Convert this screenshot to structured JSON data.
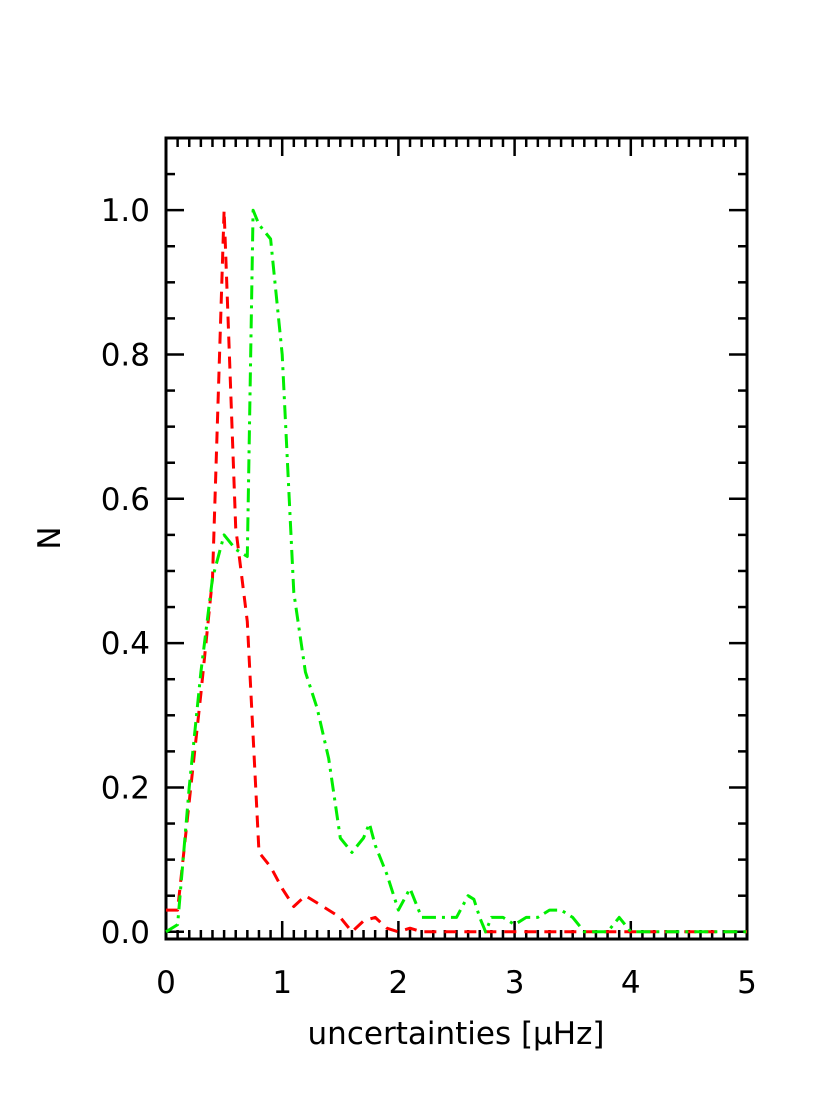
{
  "chart_data": {
    "type": "line",
    "xlabel": "uncertainties [μHz]",
    "ylabel": "N",
    "xlim": [
      0,
      5
    ],
    "ylim": [
      -0.01,
      1.1
    ],
    "xticks": [
      "0",
      "1",
      "2",
      "3",
      "4",
      "5"
    ],
    "yticks": [
      "0.0",
      "0.2",
      "0.4",
      "0.6",
      "0.8",
      "1.0"
    ],
    "series": [
      {
        "color": "#ff0000",
        "style": "dashed",
        "x": [
          0,
          0.1,
          0.2,
          0.3,
          0.4,
          0.5,
          0.6,
          0.7,
          0.8,
          0.9,
          1.0,
          1.1,
          1.2,
          1.3,
          1.4,
          1.5,
          1.6,
          1.7,
          1.8,
          1.9,
          2.0,
          2.1,
          2.2,
          2.3,
          2.4,
          2.5,
          2.6,
          2.7,
          2.8,
          2.9,
          3.0,
          3.5,
          4.0,
          4.5,
          5.0
        ],
        "y": [
          0.03,
          0.03,
          0.18,
          0.33,
          0.49,
          1.0,
          0.56,
          0.43,
          0.11,
          0.09,
          0.06,
          0.035,
          0.05,
          0.04,
          0.03,
          0.02,
          0.0,
          0.015,
          0.02,
          0.005,
          0.0,
          0.005,
          0.0,
          0.0,
          0.0,
          0.0,
          0.0,
          0.0,
          0.0,
          0.0,
          0.0,
          0.0,
          0.0,
          0.0,
          0.0
        ]
      },
      {
        "color": "#00ee00",
        "style": "dashdot",
        "x": [
          0,
          0.1,
          0.2,
          0.3,
          0.4,
          0.5,
          0.6,
          0.7,
          0.75,
          0.8,
          0.9,
          1.0,
          1.1,
          1.2,
          1.3,
          1.4,
          1.5,
          1.6,
          1.7,
          1.75,
          1.8,
          1.9,
          2.0,
          2.1,
          2.2,
          2.3,
          2.4,
          2.5,
          2.6,
          2.65,
          2.7,
          2.75,
          2.8,
          2.9,
          3.0,
          3.1,
          3.2,
          3.3,
          3.4,
          3.5,
          3.6,
          3.7,
          3.8,
          3.9,
          4.0,
          4.1,
          4.2,
          4.5,
          5.0
        ],
        "y": [
          0.0,
          0.01,
          0.2,
          0.36,
          0.49,
          0.55,
          0.53,
          0.52,
          1.0,
          0.98,
          0.96,
          0.8,
          0.47,
          0.36,
          0.31,
          0.24,
          0.13,
          0.11,
          0.13,
          0.15,
          0.12,
          0.08,
          0.03,
          0.06,
          0.02,
          0.02,
          0.02,
          0.02,
          0.05,
          0.045,
          0.02,
          0.0,
          0.02,
          0.02,
          0.01,
          0.02,
          0.02,
          0.03,
          0.03,
          0.02,
          0.0,
          0.0,
          0.0,
          0.02,
          0.0,
          0.0,
          0.0,
          0.0,
          0.0
        ]
      }
    ]
  }
}
